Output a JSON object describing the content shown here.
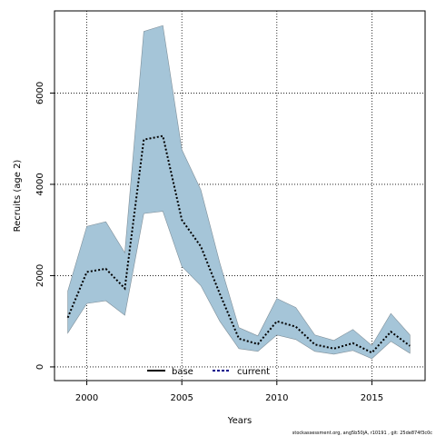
{
  "chart_data": {
    "type": "line",
    "title": "",
    "xlabel": "Years",
    "ylabel": "Recruits (age 2)",
    "xlim": [
      1998.3,
      2017.8
    ],
    "ylim": [
      -300,
      7800
    ],
    "x_ticks": [
      2000,
      2005,
      2010,
      2015
    ],
    "y_ticks": [
      0,
      2000,
      4000,
      6000
    ],
    "grid": true,
    "legend_position": "bottom-center",
    "legend": [
      "base",
      "current"
    ],
    "x": [
      1999,
      2000,
      2001,
      2002,
      2003,
      2004,
      2005,
      2006,
      2007,
      2008,
      2009,
      2010,
      2011,
      2012,
      2013,
      2014,
      2015,
      2016,
      2017
    ],
    "series": [
      {
        "name": "base",
        "line_style": "solid",
        "values": [
          null,
          null,
          null,
          null,
          null,
          null,
          null,
          null,
          null,
          null,
          null,
          null,
          null,
          null,
          null,
          null,
          null,
          null,
          null
        ]
      },
      {
        "name": "current",
        "line_style": "dotted",
        "color": "#00008b",
        "values": [
          1080,
          2080,
          2150,
          1720,
          4980,
          5060,
          3220,
          2640,
          1600,
          620,
          500,
          1000,
          880,
          490,
          400,
          520,
          310,
          770,
          460
        ],
        "band_lower": [
          740,
          1390,
          1450,
          1130,
          3360,
          3410,
          2200,
          1780,
          1000,
          400,
          340,
          700,
          600,
          340,
          280,
          360,
          180,
          560,
          300
        ],
        "band_upper": [
          1660,
          3080,
          3180,
          2500,
          7350,
          7480,
          4760,
          3880,
          2280,
          860,
          680,
          1500,
          1300,
          700,
          580,
          820,
          470,
          1170,
          700
        ]
      }
    ],
    "band_color": "#a5c5d8",
    "credit": "stockassessment.org, ang5b50jA, r10191 , git: 25de874f3c0c"
  }
}
